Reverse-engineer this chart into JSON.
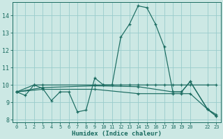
{
  "xlabel": "Humidex (Indice chaleur)",
  "bg_color": "#cce8e4",
  "grid_color": "#99cccc",
  "line_color": "#1a6b60",
  "spine_color": "#1a6b60",
  "xlim": [
    -0.5,
    23.5
  ],
  "ylim": [
    7.85,
    14.75
  ],
  "xticks": [
    0,
    1,
    2,
    3,
    4,
    5,
    6,
    7,
    8,
    9,
    10,
    11,
    12,
    13,
    14,
    15,
    16,
    17,
    18,
    19,
    20,
    22,
    23
  ],
  "xtick_labels": [
    "0",
    "1",
    "2",
    "3",
    "4",
    "5",
    "6",
    "7",
    "8",
    "9",
    "10",
    "11",
    "12",
    "13",
    "14",
    "15",
    "16",
    "17",
    "18",
    "19",
    "20",
    "22",
    "23"
  ],
  "yticks": [
    8,
    9,
    10,
    11,
    12,
    13,
    14
  ],
  "lines": [
    {
      "x": [
        0,
        1,
        2,
        3,
        4,
        5,
        6,
        7,
        8,
        9,
        10,
        11,
        12,
        13,
        14,
        15,
        16,
        17,
        18,
        19,
        20,
        22,
        23
      ],
      "y": [
        9.6,
        9.4,
        10.0,
        9.8,
        9.1,
        9.6,
        9.6,
        8.45,
        8.55,
        10.4,
        10.0,
        10.0,
        12.75,
        13.5,
        14.55,
        14.45,
        13.5,
        12.2,
        9.6,
        9.6,
        10.2,
        8.6,
        8.2
      ]
    },
    {
      "x": [
        0,
        2,
        3,
        9,
        10,
        11,
        12,
        13,
        14,
        15,
        16,
        17,
        18,
        19,
        20,
        22,
        23
      ],
      "y": [
        9.6,
        10.0,
        10.0,
        10.0,
        10.0,
        10.0,
        10.0,
        10.0,
        10.0,
        10.0,
        10.0,
        10.0,
        10.0,
        10.0,
        10.0,
        10.0,
        10.0
      ]
    },
    {
      "x": [
        0,
        3,
        9,
        14,
        18,
        19,
        20,
        22,
        23
      ],
      "y": [
        9.6,
        9.75,
        9.75,
        9.5,
        9.5,
        9.5,
        9.5,
        8.6,
        8.2
      ]
    },
    {
      "x": [
        0,
        3,
        9,
        14,
        18,
        19,
        20,
        22,
        23
      ],
      "y": [
        9.6,
        9.85,
        9.95,
        9.9,
        9.6,
        9.6,
        10.2,
        8.6,
        8.3
      ]
    }
  ]
}
